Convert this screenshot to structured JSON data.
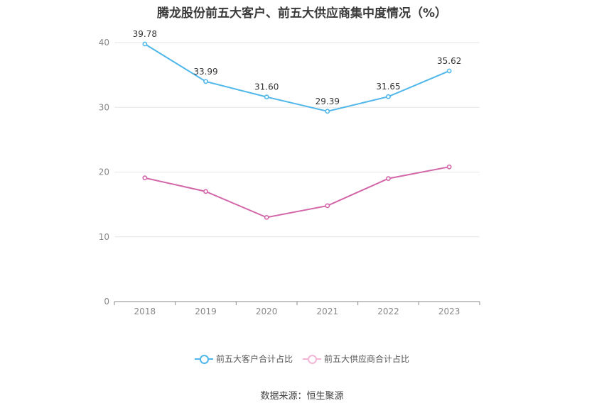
{
  "chart_data": {
    "type": "line",
    "title": "腾龙股份前五大客户、前五大供应商集中度情况（%）",
    "categories": [
      "2018",
      "2019",
      "2020",
      "2021",
      "2022",
      "2023"
    ],
    "ylim": [
      0,
      40
    ],
    "yticks": [
      0,
      10,
      20,
      30,
      40
    ],
    "grid": true,
    "legend_position": "bottom-center",
    "series": [
      {
        "name": "前五大客户合计占比",
        "color": "#4fb7ea",
        "values": [
          39.78,
          33.99,
          31.6,
          29.39,
          31.65,
          35.62
        ],
        "labels": [
          "39.78",
          "33.99",
          "31.60",
          "29.39",
          "31.65",
          "35.62"
        ]
      },
      {
        "name": "前五大供应商合计占比",
        "color": "#d366a8",
        "values": [
          19.1,
          17.0,
          13.0,
          14.8,
          19.0,
          20.8
        ],
        "labels": []
      }
    ]
  },
  "source": "数据来源：恒生聚源"
}
